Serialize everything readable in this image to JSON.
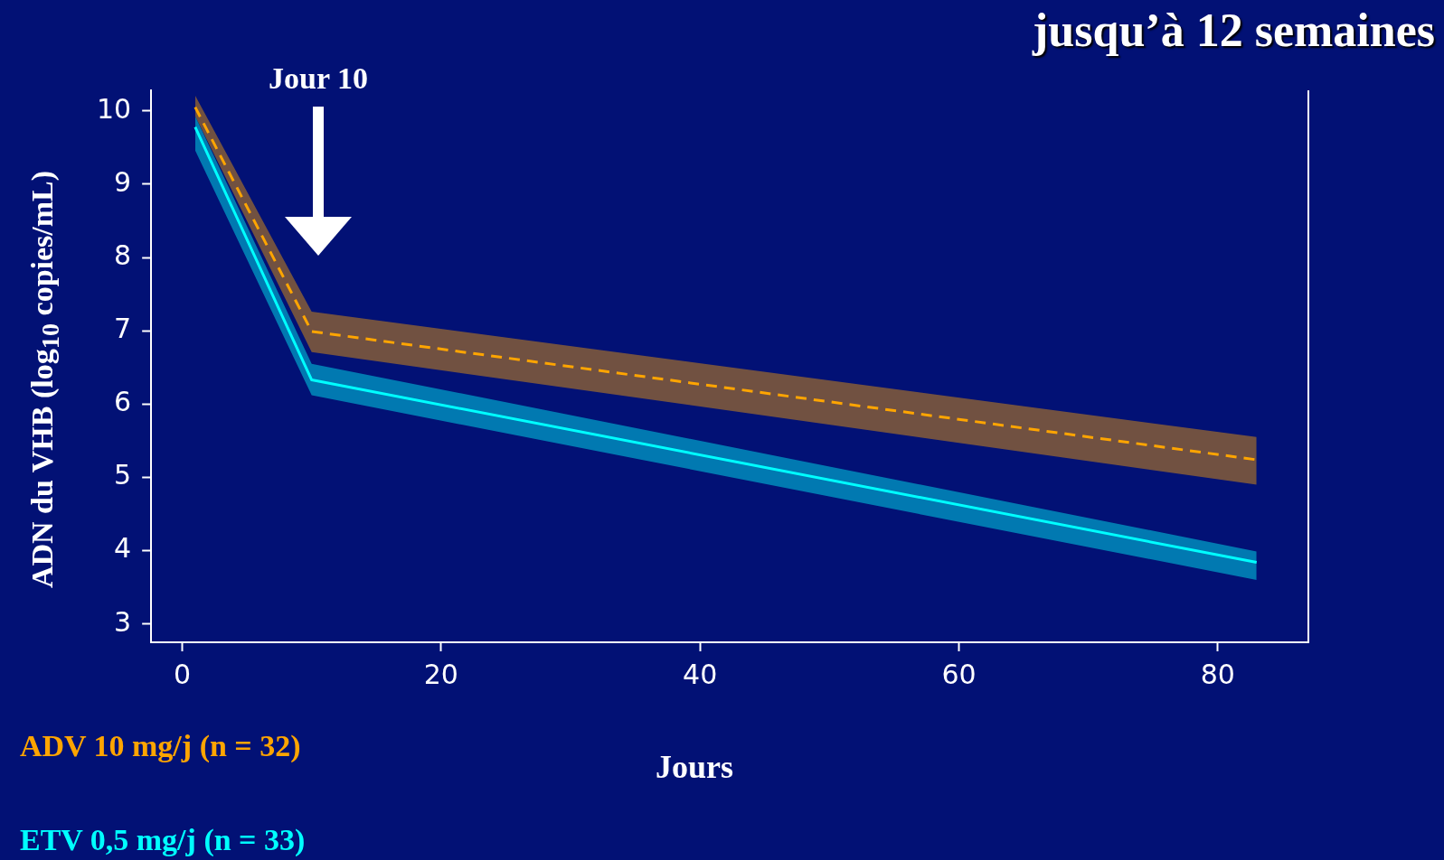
{
  "chart_data": {
    "type": "line",
    "title": "jusqu’à 12 semaines",
    "xlabel": "Jours",
    "ylabel": "ADN du VHB (log$_{10}$ copies/mL)",
    "xlim": [
      -2.4,
      87
    ],
    "xticks": [
      0,
      20,
      40,
      60,
      80
    ],
    "ylim": [
      2.75,
      10.28
    ],
    "yticks": [
      3,
      4,
      5,
      6,
      7,
      8,
      9,
      10
    ],
    "grid": false,
    "legend": "bottom left",
    "marker": "none",
    "annotations": [
      "Jour 10"
    ],
    "series": [
      {
        "name": "ADV 10 mg/j (n = 32)",
        "color": "#ffa500",
        "line_style": "dashed",
        "x": [
          1,
          10,
          83
        ],
        "values": [
          10.05,
          6.99,
          5.24
        ],
        "lower": [
          9.93,
          6.71,
          4.9
        ],
        "upper": [
          10.21,
          7.26,
          5.55
        ]
      },
      {
        "name": "ETV 0,5 mg/j (n = 33)",
        "color": "#00ffff",
        "line_style": "solid",
        "x": [
          1,
          10,
          83
        ],
        "values": [
          9.78,
          6.33,
          3.84
        ],
        "lower": [
          9.46,
          6.12,
          3.6
        ],
        "upper": [
          9.93,
          6.55,
          3.99
        ]
      }
    ]
  }
}
